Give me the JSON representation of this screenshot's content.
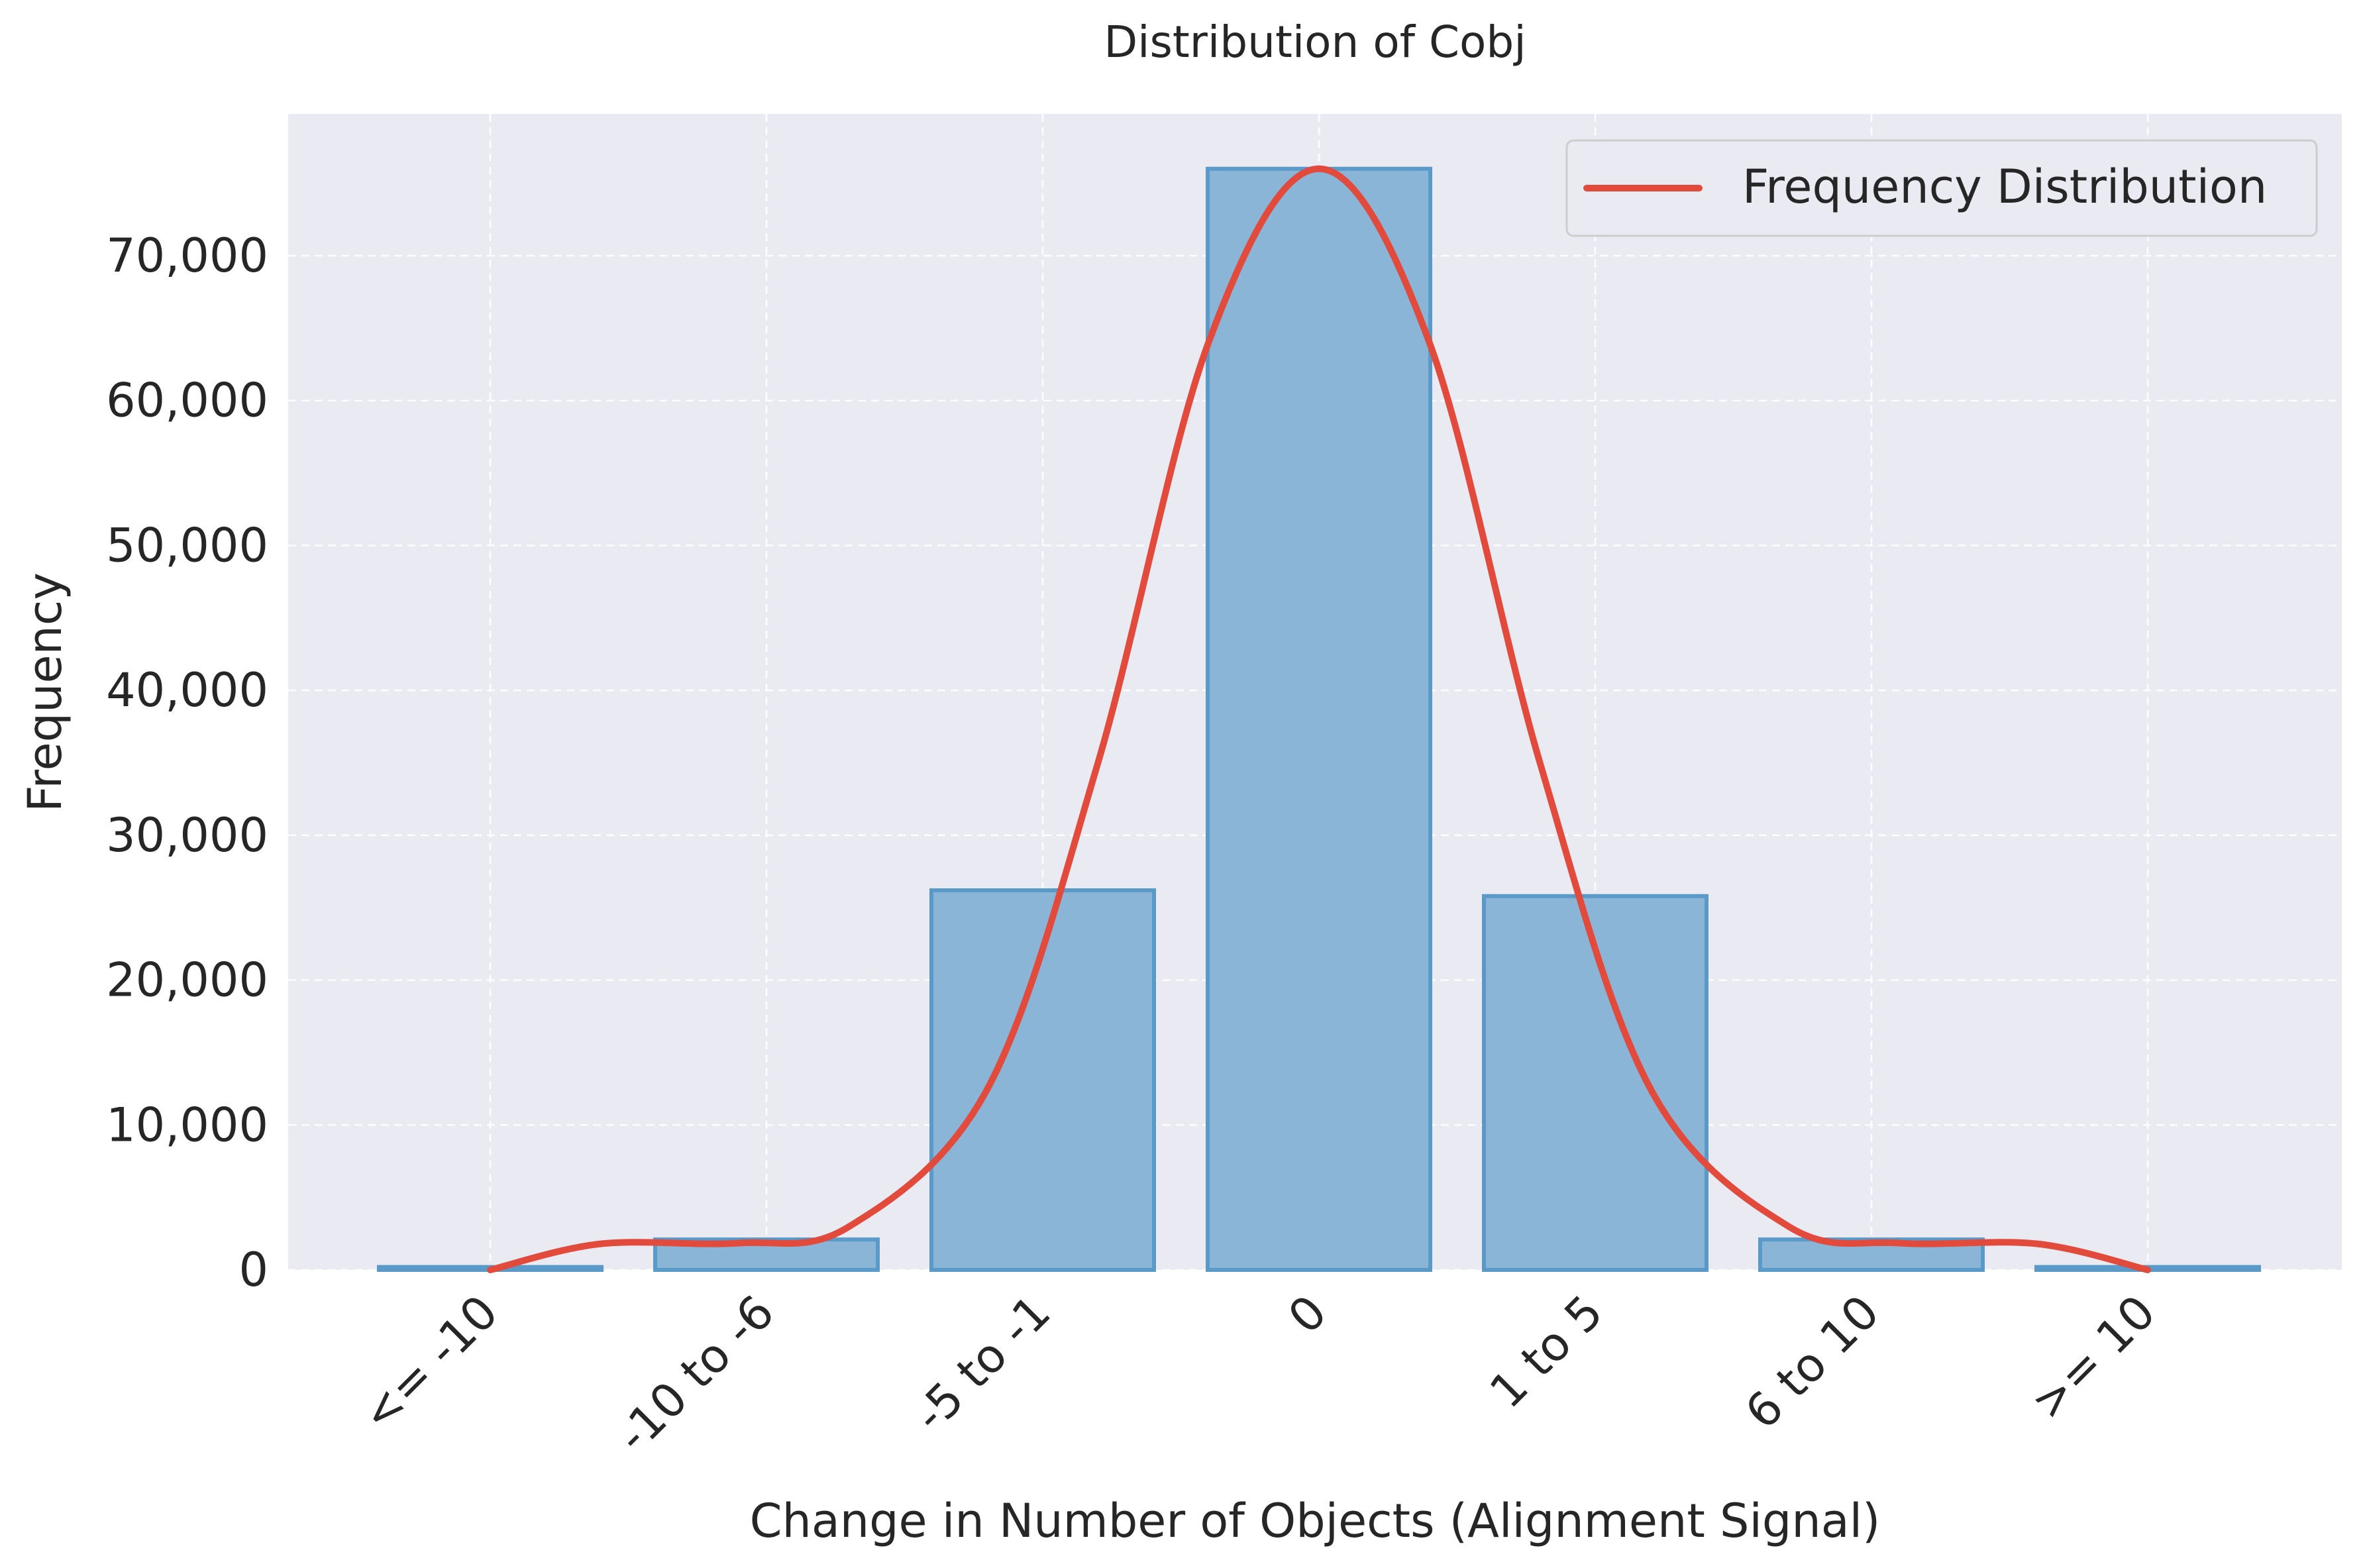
{
  "chart_data": {
    "type": "bar",
    "title": "Distribution of Cobj",
    "xlabel": "Change in Number of Objects (Alignment Signal)",
    "ylabel": "Frequency",
    "categories": [
      "<= -10",
      "-10 to -6",
      "-5 to -1",
      "0",
      "1 to 5",
      "6 to 10",
      ">= 10"
    ],
    "series": [
      {
        "values": [
          200,
          2100,
          26200,
          76000,
          25800,
          2100,
          200
        ]
      }
    ],
    "line": {
      "name": "Frequency Distribution",
      "x": [
        0,
        0.4,
        0.9,
        1.3,
        1.8,
        2.2,
        2.6,
        3.0,
        3.4,
        3.8,
        4.2,
        4.7,
        5.1,
        5.6,
        6.0
      ],
      "y": [
        0,
        1800,
        1850,
        3000,
        12500,
        35000,
        64000,
        76000,
        64000,
        35000,
        12500,
        3000,
        1850,
        1800,
        0
      ]
    },
    "ylim": [
      0,
      80000
    ],
    "yticks": [
      0,
      10000,
      20000,
      30000,
      40000,
      50000,
      60000,
      70000
    ],
    "ytick_labels": [
      "0",
      "10,000",
      "20,000",
      "30,000",
      "40,000",
      "50,000",
      "60,000",
      "70,000"
    ],
    "grid": true,
    "legend_position": "top-right",
    "colors": {
      "background": "#eaeaf2",
      "bar_fill": "#8ab5d6",
      "bar_edge": "#5a9ac9",
      "line": "#e24a3b"
    }
  }
}
